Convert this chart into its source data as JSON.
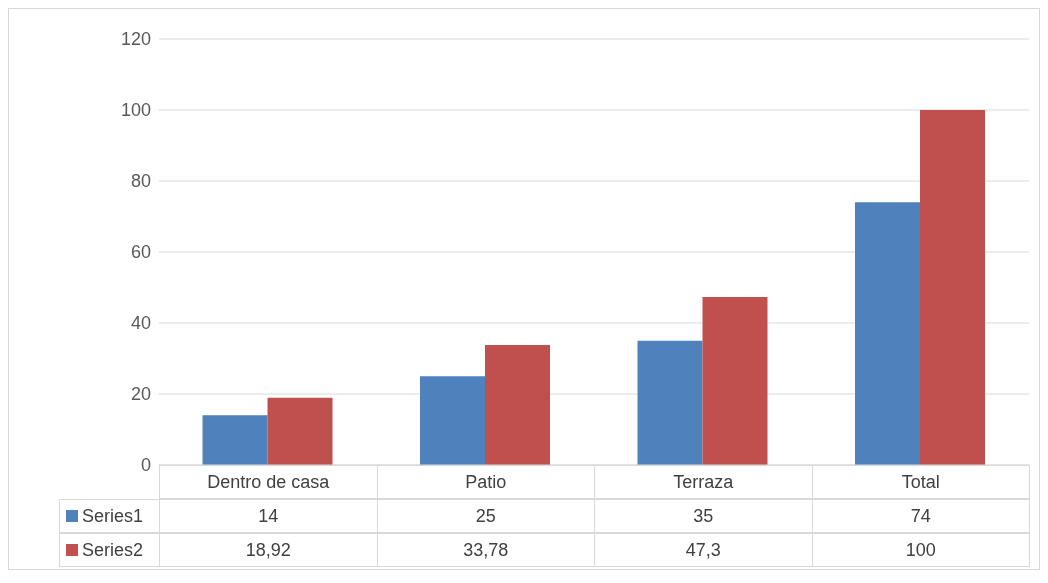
{
  "chart_data": {
    "type": "bar",
    "categories": [
      "Dentro de casa",
      "Patio",
      "Terraza",
      "Total"
    ],
    "series": [
      {
        "name": "Series1",
        "color": "#4f81bd",
        "values": [
          14,
          25,
          35,
          74
        ],
        "value_labels": [
          "14",
          "25",
          "35",
          "74"
        ]
      },
      {
        "name": "Series2",
        "color": "#c0504d",
        "values": [
          18.92,
          33.78,
          47.3,
          100
        ],
        "value_labels": [
          "18,92",
          "33,78",
          "47,3",
          "100"
        ]
      }
    ],
    "ylim": [
      0,
      120
    ],
    "yticks": [
      0,
      20,
      40,
      60,
      80,
      100,
      120
    ],
    "grid": "y",
    "legend": "bottom"
  }
}
